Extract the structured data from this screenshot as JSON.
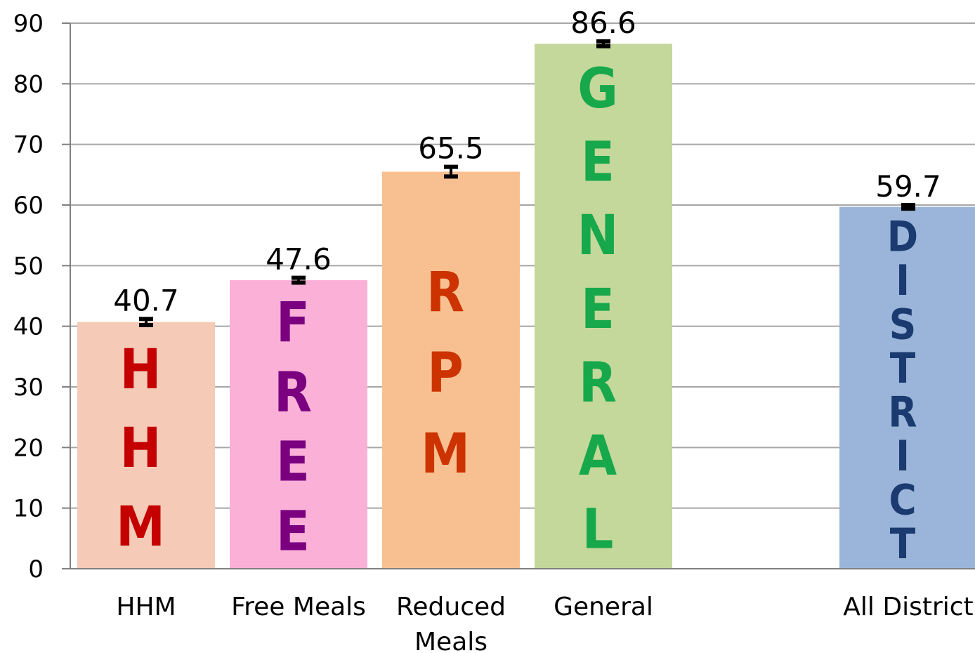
{
  "chart_data": {
    "type": "bar",
    "categories": [
      "HHM",
      "Free Meals",
      "Reduced Meals",
      "General",
      "",
      "All District"
    ],
    "category_lines": [
      [
        "HHM"
      ],
      [
        "Free Meals"
      ],
      [
        "Reduced",
        "Meals"
      ],
      [
        "General"
      ],
      [],
      [
        "All District"
      ]
    ],
    "values": [
      40.7,
      47.6,
      65.5,
      86.6,
      null,
      59.7
    ],
    "value_labels": [
      "40.7",
      "47.6",
      "65.5",
      "86.6",
      "",
      "59.7"
    ],
    "error_half": [
      0.5,
      0.4,
      0.8,
      0.4,
      null,
      0.3
    ],
    "bar_colors": [
      "#f5cab7",
      "#fbb0d8",
      "#f8c091",
      "#c3d89a",
      "",
      "#9ab5d9"
    ],
    "inner_text": [
      "HHM",
      "FREE",
      "RPM",
      "GENERAL",
      "",
      "DISTRICT"
    ],
    "inner_text_colors": [
      "#c40000",
      "#7a0080",
      "#cc3300",
      "#16a84a",
      "",
      "#1b3a70"
    ],
    "ylim": [
      0,
      90
    ],
    "yticks": [
      0,
      10,
      20,
      30,
      40,
      50,
      60,
      70,
      80,
      90
    ],
    "grid": true,
    "title": "",
    "xlabel": "",
    "ylabel": ""
  }
}
